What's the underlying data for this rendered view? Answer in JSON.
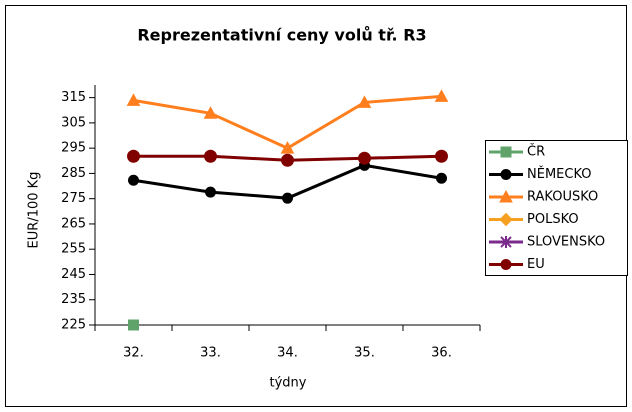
{
  "chart_data": {
    "type": "line",
    "title": "Reprezentativní ceny volů tř. R3",
    "x_label": "týdny",
    "y_label": "EUR/100 Kg",
    "categories": [
      "32.",
      "33.",
      "34.",
      "35.",
      "36."
    ],
    "ylim": [
      225,
      320
    ],
    "yticks": [
      225,
      235,
      245,
      255,
      265,
      275,
      285,
      295,
      305,
      315
    ],
    "legend": "right",
    "series": [
      {
        "name": "ČR",
        "color": "#5fa36a",
        "marker": "square",
        "values": [
          225,
          null,
          null,
          null,
          null
        ]
      },
      {
        "name": "NĚMECKO",
        "color": "#000000",
        "marker": "circle",
        "values": [
          282.3,
          277.6,
          275.2,
          288.2,
          283.1
        ]
      },
      {
        "name": "RAKOUSKO",
        "color": "#ff7f1e",
        "marker": "triangle",
        "values": [
          313.9,
          308.8,
          295,
          313.1,
          315.5
        ]
      },
      {
        "name": "POLSKO",
        "color": "#f5a020",
        "marker": "diamond",
        "values": [
          null,
          null,
          null,
          null,
          null
        ]
      },
      {
        "name": "SLOVENSKO",
        "color": "#7a2b8c",
        "marker": "star",
        "values": [
          null,
          null,
          null,
          null,
          null
        ]
      },
      {
        "name": "EU",
        "color": "#800000",
        "marker": "circle",
        "values": [
          291.8,
          291.8,
          290.2,
          291,
          291.8
        ]
      }
    ]
  }
}
